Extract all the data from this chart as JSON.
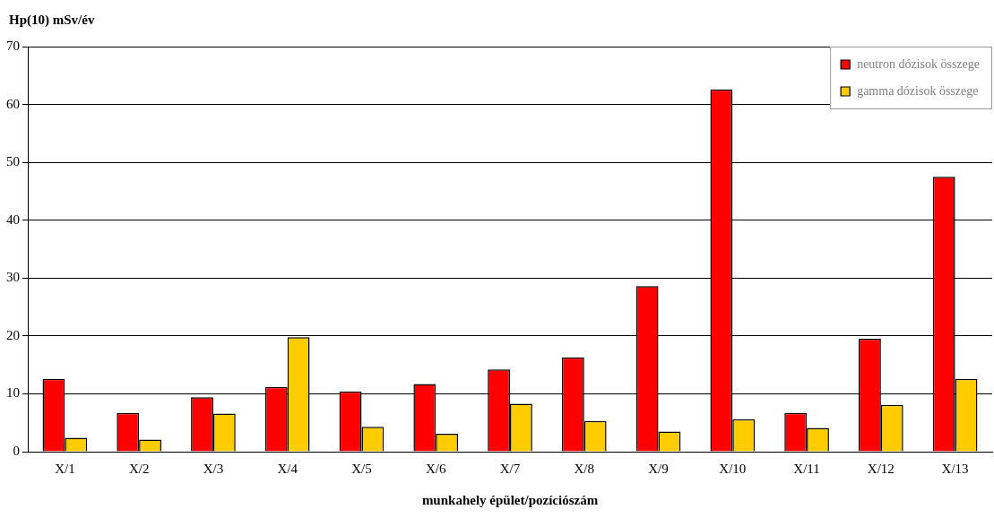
{
  "chart_data": {
    "type": "bar",
    "ylabel": "Hp(10) mSv/év",
    "xlabel": "munkahely épület/pozíciószám",
    "categories": [
      "X/1",
      "X/2",
      "X/3",
      "X/4",
      "X/5",
      "X/6",
      "X/7",
      "X/8",
      "X/9",
      "X/10",
      "X/11",
      "X/12",
      "X/13"
    ],
    "series": [
      {
        "name": "neutron dózisok összege",
        "color": "#ff0000",
        "values": [
          12.6,
          6.7,
          9.4,
          11.2,
          10.4,
          11.7,
          14.2,
          16.3,
          28.6,
          62.6,
          6.7,
          19.5,
          47.5
        ]
      },
      {
        "name": "gamma dózisok összege",
        "color": "#ffcc00",
        "values": [
          2.4,
          2.1,
          6.6,
          19.8,
          4.3,
          3.1,
          8.3,
          5.3,
          3.5,
          5.6,
          4.1,
          8.1,
          12.6
        ]
      }
    ],
    "ylim": [
      0,
      70
    ],
    "yticks": [
      0,
      10,
      20,
      30,
      40,
      50,
      60,
      70
    ],
    "grid": "y",
    "legend": "top right"
  }
}
